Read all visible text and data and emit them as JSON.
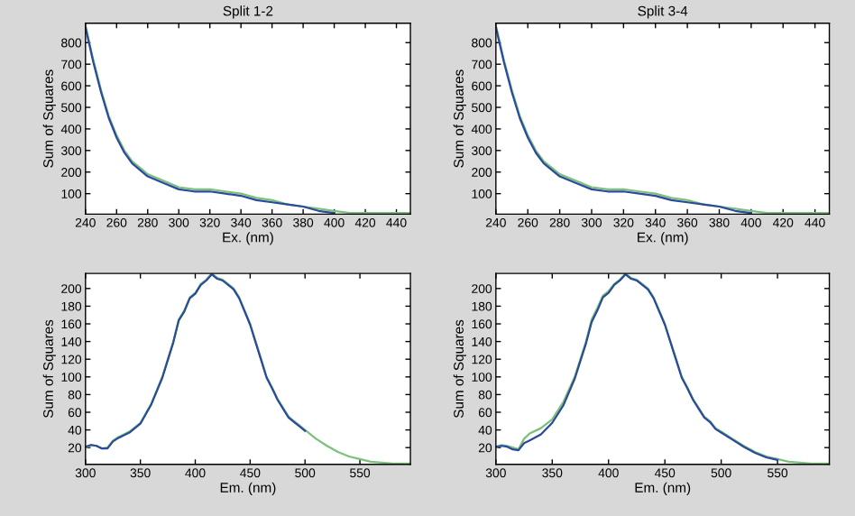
{
  "chart_data": [
    {
      "type": "line",
      "title": "Split 1-2",
      "xlabel": "Ex. (nm)",
      "ylabel": "Sum of Squares",
      "xlim": [
        240,
        449
      ],
      "ylim": [
        5,
        890
      ],
      "xticks": [
        240,
        260,
        280,
        300,
        320,
        340,
        360,
        380,
        400,
        420,
        440
      ],
      "yticks": [
        100,
        200,
        300,
        400,
        500,
        600,
        700,
        800
      ],
      "grid": false,
      "legend": false,
      "x": [
        240,
        245,
        250,
        255,
        260,
        265,
        270,
        275,
        280,
        290,
        300,
        310,
        320,
        330,
        340,
        350,
        360,
        370,
        380,
        390,
        400,
        410,
        420,
        430,
        440,
        449
      ],
      "series": [
        {
          "color": "#7cc07c",
          "values": [
            880,
            720,
            580,
            460,
            370,
            300,
            250,
            220,
            190,
            160,
            130,
            120,
            120,
            110,
            100,
            80,
            70,
            50,
            40,
            30,
            20,
            10,
            10,
            10,
            10,
            10
          ]
        },
        {
          "color": "#2a4a9a",
          "values": [
            870,
            710,
            570,
            450,
            360,
            290,
            240,
            210,
            180,
            150,
            120,
            110,
            110,
            100,
            90,
            70,
            60,
            50,
            40,
            20,
            10,
            null,
            null,
            null,
            null,
            null
          ]
        }
      ]
    },
    {
      "type": "line",
      "title": "Split 3-4",
      "xlabel": "Ex. (nm)",
      "ylabel": "Sum of Squares",
      "xlim": [
        240,
        449
      ],
      "ylim": [
        5,
        890
      ],
      "xticks": [
        240,
        260,
        280,
        300,
        320,
        340,
        360,
        380,
        400,
        420,
        440
      ],
      "yticks": [
        100,
        200,
        300,
        400,
        500,
        600,
        700,
        800
      ],
      "grid": false,
      "legend": false,
      "x": [
        240,
        245,
        250,
        255,
        260,
        265,
        270,
        275,
        280,
        290,
        300,
        310,
        320,
        330,
        340,
        350,
        360,
        370,
        380,
        390,
        400,
        410,
        420,
        430,
        440,
        449
      ],
      "series": [
        {
          "color": "#7cc07c",
          "values": [
            880,
            720,
            580,
            460,
            370,
            300,
            250,
            220,
            190,
            160,
            130,
            120,
            120,
            110,
            100,
            80,
            70,
            50,
            40,
            30,
            20,
            10,
            10,
            10,
            10,
            10
          ]
        },
        {
          "color": "#2a4a9a",
          "values": [
            870,
            710,
            570,
            450,
            360,
            290,
            240,
            210,
            180,
            150,
            120,
            110,
            110,
            100,
            90,
            70,
            60,
            50,
            40,
            20,
            10,
            null,
            null,
            null,
            null,
            null
          ]
        }
      ]
    },
    {
      "type": "line",
      "xlabel": "Em. (nm)",
      "ylabel": "Sum of Squares",
      "xlim": [
        300,
        596
      ],
      "ylim": [
        1,
        217
      ],
      "xticks": [
        300,
        350,
        400,
        450,
        500,
        550
      ],
      "yticks": [
        20,
        40,
        60,
        80,
        100,
        120,
        140,
        160,
        180,
        200
      ],
      "grid": false,
      "legend": false,
      "x": [
        300,
        305,
        310,
        315,
        320,
        325,
        330,
        340,
        350,
        360,
        370,
        375,
        380,
        385,
        390,
        395,
        400,
        405,
        410,
        415,
        420,
        425,
        430,
        435,
        440,
        445,
        450,
        455,
        460,
        465,
        470,
        475,
        480,
        485,
        490,
        495,
        500,
        510,
        520,
        530,
        540,
        550,
        560,
        570,
        580,
        596
      ],
      "series": [
        {
          "color": "#7cc07c",
          "values": [
            20,
            23,
            22,
            19,
            20,
            28,
            32,
            38,
            48,
            70,
            100,
            120,
            140,
            165,
            175,
            190,
            195,
            205,
            210,
            217,
            212,
            210,
            205,
            200,
            190,
            175,
            160,
            140,
            120,
            100,
            88,
            75,
            65,
            55,
            50,
            45,
            40,
            30,
            22,
            15,
            10,
            7,
            4,
            3,
            2,
            2
          ]
        },
        {
          "color": "#2a4a9a",
          "values": [
            21,
            23,
            22,
            19,
            19,
            27,
            31,
            37,
            47,
            69,
            99,
            119,
            139,
            164,
            174,
            189,
            194,
            204,
            209,
            216,
            211,
            209,
            204,
            199,
            189,
            174,
            159,
            139,
            119,
            99,
            87,
            74,
            64,
            54,
            49,
            44,
            39,
            null,
            null,
            null,
            null,
            null,
            null,
            null,
            null,
            null
          ]
        }
      ]
    },
    {
      "type": "line",
      "xlabel": "Em. (nm)",
      "ylabel": "Sum of Squares",
      "xlim": [
        300,
        596
      ],
      "ylim": [
        1,
        217
      ],
      "xticks": [
        300,
        350,
        400,
        450,
        500,
        550
      ],
      "yticks": [
        20,
        40,
        60,
        80,
        100,
        120,
        140,
        160,
        180,
        200
      ],
      "grid": false,
      "legend": false,
      "x": [
        300,
        305,
        310,
        315,
        320,
        325,
        330,
        340,
        350,
        360,
        370,
        375,
        380,
        385,
        390,
        395,
        400,
        405,
        410,
        415,
        420,
        425,
        430,
        435,
        440,
        445,
        450,
        455,
        460,
        465,
        470,
        475,
        480,
        485,
        490,
        495,
        500,
        510,
        520,
        530,
        540,
        550,
        560,
        570,
        580,
        596
      ],
      "series": [
        {
          "color": "#7cc07c",
          "values": [
            20,
            23,
            22,
            20,
            18,
            30,
            36,
            42,
            52,
            72,
            100,
            120,
            140,
            165,
            178,
            192,
            197,
            205,
            210,
            217,
            212,
            210,
            205,
            200,
            190,
            175,
            160,
            140,
            120,
            100,
            88,
            75,
            65,
            55,
            50,
            42,
            38,
            30,
            22,
            15,
            10,
            7,
            4,
            3,
            2,
            2
          ]
        },
        {
          "color": "#2a4a9a",
          "values": [
            21,
            22,
            21,
            18,
            17,
            25,
            28,
            35,
            48,
            68,
            98,
            118,
            138,
            162,
            175,
            190,
            195,
            204,
            209,
            216,
            211,
            209,
            204,
            199,
            189,
            174,
            159,
            139,
            119,
            99,
            87,
            74,
            64,
            54,
            49,
            41,
            37,
            29,
            21,
            14,
            9,
            6,
            null,
            null,
            null,
            null
          ]
        }
      ]
    }
  ]
}
